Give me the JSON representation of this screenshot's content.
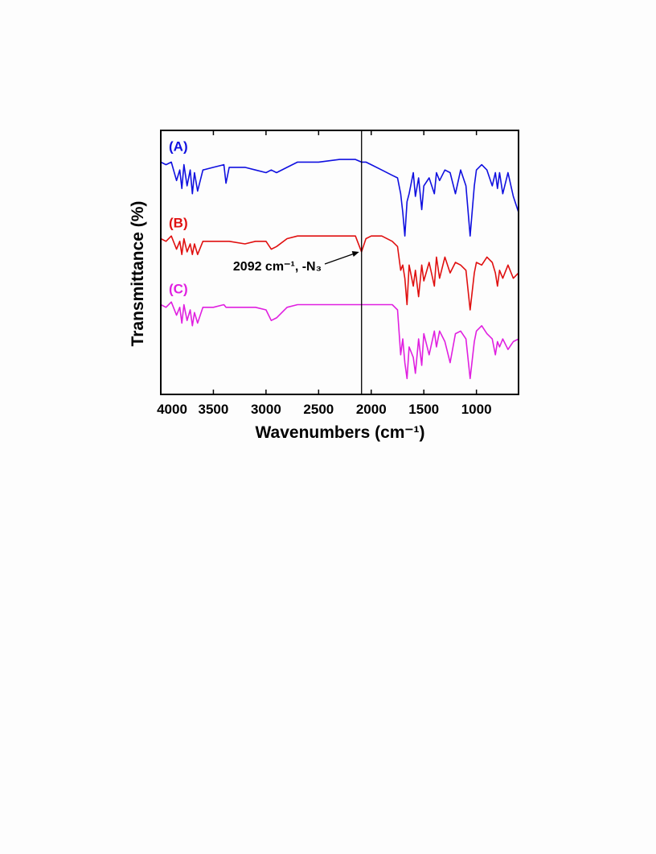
{
  "chart_data": {
    "type": "line",
    "xlabel": "Wavenumbers (cm⁻¹)",
    "ylabel": "Transmittance (%)",
    "annotation": "2092 cm⁻¹, -N₃",
    "vline_x": 2092,
    "xlim": [
      4000,
      600
    ],
    "xticks": [
      4000,
      3500,
      3000,
      2500,
      2000,
      1500,
      1000
    ],
    "ylim": [
      0,
      100
    ],
    "x": [
      4000,
      3950,
      3900,
      3850,
      3820,
      3800,
      3780,
      3750,
      3720,
      3700,
      3680,
      3650,
      3600,
      3500,
      3400,
      3380,
      3350,
      3200,
      3100,
      3000,
      2950,
      2900,
      2800,
      2700,
      2500,
      2300,
      2150,
      2092,
      2050,
      2000,
      1900,
      1800,
      1750,
      1720,
      1700,
      1680,
      1660,
      1640,
      1600,
      1580,
      1550,
      1520,
      1500,
      1450,
      1400,
      1380,
      1350,
      1300,
      1250,
      1200,
      1150,
      1100,
      1060,
      1020,
      1000,
      950,
      900,
      850,
      820,
      800,
      780,
      750,
      700,
      650,
      600
    ],
    "series": [
      {
        "name": "(A)",
        "color": "#1010e0",
        "values": [
          88,
          87,
          88,
          81,
          85,
          78,
          87,
          79,
          85,
          76,
          84,
          77,
          85,
          86,
          87,
          80,
          86,
          86,
          85,
          84,
          85,
          84,
          86,
          88,
          88,
          89,
          89,
          88,
          88,
          87,
          85,
          83,
          82,
          76,
          69,
          60,
          73,
          76,
          84,
          75,
          82,
          70,
          79,
          82,
          76,
          84,
          81,
          85,
          84,
          76,
          85,
          79,
          60,
          79,
          85,
          87,
          85,
          79,
          84,
          78,
          84,
          76,
          84,
          75,
          69
        ]
      },
      {
        "name": "(B)",
        "color": "#e01010",
        "values": [
          59,
          58,
          60,
          55,
          58,
          53,
          59,
          54,
          57,
          53,
          57,
          53,
          58,
          58,
          58,
          58,
          58,
          57,
          58,
          58,
          55,
          56,
          59,
          60,
          60,
          60,
          60,
          54,
          59,
          60,
          60,
          58,
          56,
          47,
          49,
          44,
          34,
          49,
          41,
          47,
          37,
          49,
          43,
          50,
          41,
          52,
          44,
          52,
          46,
          50,
          49,
          47,
          32,
          46,
          50,
          49,
          52,
          50,
          46,
          41,
          47,
          44,
          49,
          44,
          46
        ]
      },
      {
        "name": "(C)",
        "color": "#e020e0",
        "values": [
          34,
          33,
          35,
          30,
          33,
          27,
          34,
          28,
          32,
          26,
          31,
          27,
          33,
          33,
          34,
          33,
          33,
          33,
          33,
          32,
          28,
          29,
          33,
          34,
          34,
          34,
          34,
          34,
          34,
          34,
          34,
          34,
          32,
          15,
          21,
          12,
          6,
          18,
          14,
          8,
          21,
          11,
          23,
          15,
          24,
          18,
          24,
          20,
          12,
          23,
          24,
          21,
          6,
          20,
          24,
          26,
          23,
          21,
          15,
          20,
          18,
          21,
          17,
          20,
          21
        ]
      }
    ]
  }
}
